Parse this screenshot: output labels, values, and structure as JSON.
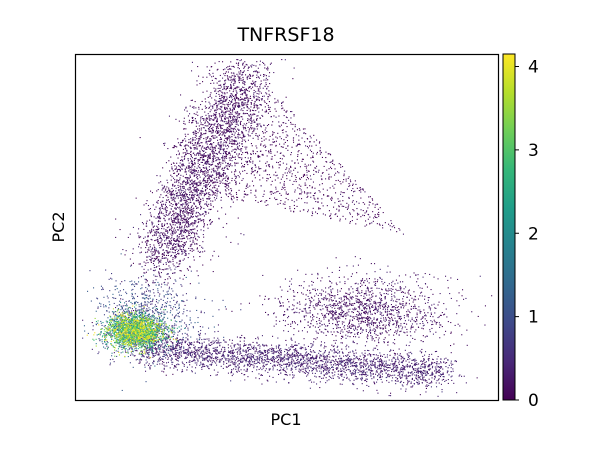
{
  "chart_data": {
    "type": "scatter",
    "title": "TNFRSF18",
    "xlabel": "PC1",
    "ylabel": "PC2",
    "x_ticks_shown": false,
    "y_ticks_shown": false,
    "grid": false,
    "legend": "none",
    "colorscale": {
      "name": "viridis",
      "range": [
        0,
        4.15
      ],
      "ticks": [
        "0",
        "1",
        "2",
        "3",
        "4"
      ],
      "tick_values": [
        0,
        1,
        2,
        3,
        4
      ],
      "stops": [
        "#440154",
        "#482878",
        "#3e4989",
        "#31688e",
        "#26828e",
        "#1f9e89",
        "#35b779",
        "#6ece58",
        "#b5de2b",
        "#fde725"
      ]
    },
    "clusters": [
      {
        "name": "upper-arm",
        "shape": "segment",
        "from": [
          0.2,
          0.4
        ],
        "to": [
          0.4,
          0.95
        ],
        "width": 0.08,
        "n": 3200,
        "value_mean": 0.15
      },
      {
        "name": "lower-arm",
        "shape": "segment",
        "from": [
          0.15,
          0.15
        ],
        "to": [
          0.88,
          0.08
        ],
        "width": 0.05,
        "n": 2600,
        "value_mean": 0.35
      },
      {
        "name": "right-lobe",
        "shape": "blob",
        "center": [
          0.68,
          0.26
        ],
        "spread": [
          0.1,
          0.05
        ],
        "n": 1400,
        "value_mean": 0.2
      },
      {
        "name": "dense-core",
        "shape": "blob",
        "center": [
          0.14,
          0.2
        ],
        "spread": [
          0.035,
          0.025
        ],
        "n": 2200,
        "value_mean": 2.7
      },
      {
        "name": "core-halo",
        "shape": "blob",
        "center": [
          0.16,
          0.24
        ],
        "spread": [
          0.06,
          0.06
        ],
        "n": 900,
        "value_mean": 0.9
      },
      {
        "name": "sparse-interior",
        "shape": "triangle",
        "vertices": [
          [
            0.3,
            0.6
          ],
          [
            0.45,
            0.92
          ],
          [
            0.78,
            0.48
          ]
        ],
        "n": 900,
        "value_mean": 0.05
      }
    ]
  }
}
